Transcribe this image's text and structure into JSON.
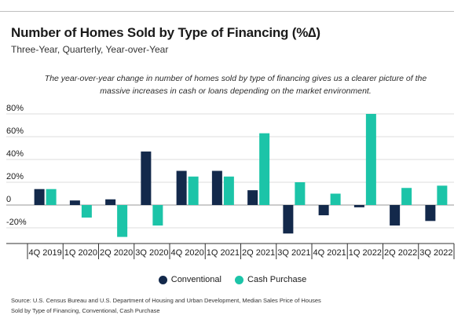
{
  "title": "Number of Homes Sold by Type of Financing (%∆)",
  "subtitle": "Three-Year, Quarterly, Year-over-Year",
  "annotation": "The year-over-year change in number of homes sold by type of financing gives us a clearer picture of the massive increases in cash or loans depending on the market environment.",
  "source": "Source:  U.S. Census Bureau and U.S. Department of Housing and Urban Development, Median Sales Price of Houses Sold by Type of Financing, Conventional, Cash Purchase",
  "legend": {
    "conventional": "Conventional",
    "cash": "Cash Purchase"
  },
  "colors": {
    "conventional": "#13294b",
    "cash": "#1cc4a8"
  },
  "chart_data": {
    "type": "bar",
    "title": "Number of Homes Sold by Type of Financing (%∆)",
    "subtitle": "Three-Year, Quarterly, Year-over-Year",
    "xlabel": "",
    "ylabel": "",
    "ylim": [
      -30,
      80
    ],
    "yticks": [
      80,
      60,
      40,
      20,
      0,
      -20
    ],
    "ytick_labels": [
      "80%",
      "60%",
      "40%",
      "20%",
      "0",
      "-20%"
    ],
    "grid": true,
    "legend_position": "bottom-center",
    "categories": [
      "4Q 2019",
      "1Q 2020",
      "2Q 2020",
      "3Q 2020",
      "4Q 2020",
      "1Q 2021",
      "2Q 2021",
      "3Q 2021",
      "4Q 2021",
      "1Q 2022",
      "2Q 2022",
      "3Q 2022"
    ],
    "series": [
      {
        "name": "Conventional",
        "values": [
          14,
          4,
          5,
          47,
          30,
          30,
          13,
          -25,
          -9,
          -2,
          -18,
          -14
        ]
      },
      {
        "name": "Cash Purchase",
        "values": [
          14,
          -11,
          -28,
          -18,
          25,
          25,
          63,
          20,
          10,
          80,
          15,
          17
        ]
      }
    ]
  }
}
